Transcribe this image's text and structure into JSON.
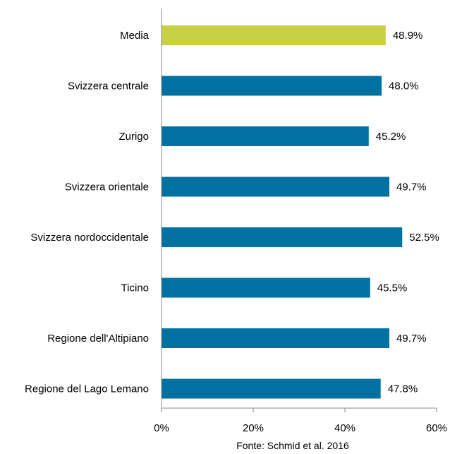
{
  "chart_data": {
    "type": "bar",
    "orientation": "horizontal",
    "categories": [
      "Media",
      "Svizzera centrale",
      "Zurigo",
      "Svizzera orientale",
      "Svizzera nordoccidentale",
      "Ticino",
      "Regione dell'Altipiano",
      "Regione del Lago Lemano"
    ],
    "values": [
      48.9,
      48.0,
      45.2,
      49.7,
      52.5,
      45.5,
      49.7,
      47.8
    ],
    "value_labels": [
      "48.9%",
      "48.0%",
      "45.2%",
      "49.7%",
      "52.5%",
      "45.5%",
      "49.7%",
      "47.8%"
    ],
    "xlim": [
      0,
      60
    ],
    "xticks": [
      0,
      20,
      40,
      60
    ],
    "xtick_labels": [
      "0%",
      "20%",
      "40%",
      "60%"
    ],
    "grid": false,
    "colors": {
      "highlight": "#c8d046",
      "default": "#0071a0"
    },
    "highlight_categories": [
      "Media"
    ]
  },
  "source": "Fonte: Schmid et al. 2016"
}
